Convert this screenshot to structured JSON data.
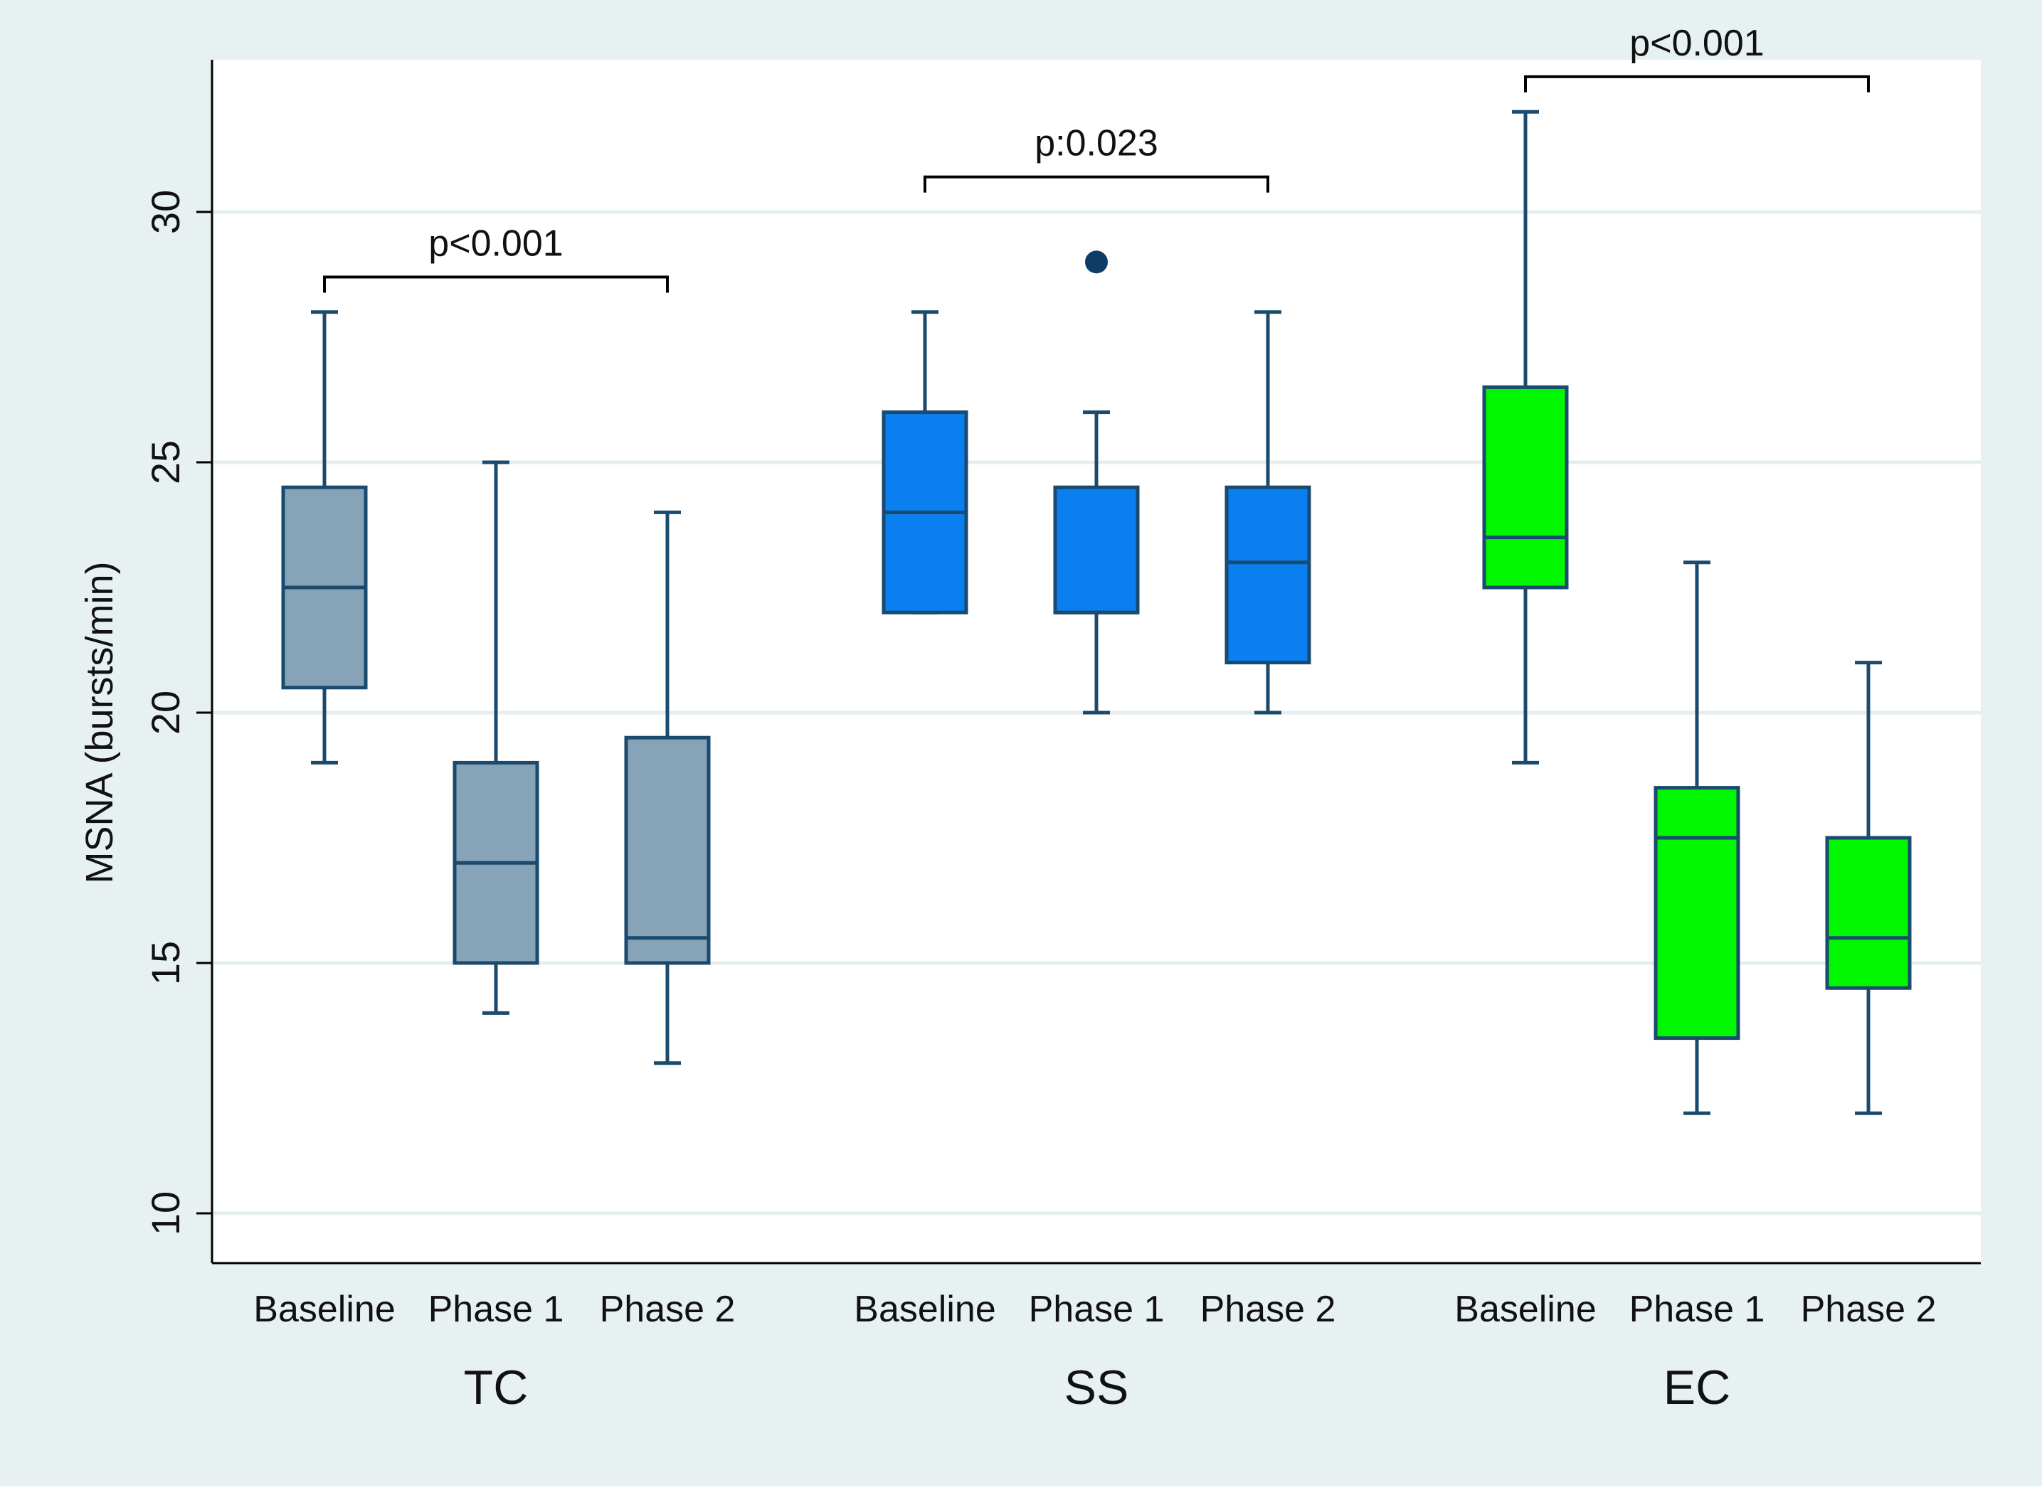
{
  "chart_data": {
    "type": "boxplot",
    "ylabel": "MSNA (bursts/min)",
    "xlabel": "",
    "ylim": [
      9,
      33
    ],
    "yticks": [
      10,
      15,
      20,
      25,
      30
    ],
    "grid": true,
    "groups": [
      {
        "name": "TC",
        "color": "#87a3b8",
        "boxes": [
          {
            "label": "Baseline",
            "min": 19,
            "q1": 20.5,
            "median": 22.5,
            "q3": 24.5,
            "max": 28,
            "outliers": []
          },
          {
            "label": "Phase 1",
            "min": 14,
            "q1": 15,
            "median": 17,
            "q3": 19,
            "max": 25,
            "outliers": []
          },
          {
            "label": "Phase 2",
            "min": 13,
            "q1": 15,
            "median": 15.5,
            "q3": 19.5,
            "max": 24,
            "outliers": []
          }
        ],
        "comparison": {
          "text": "p<0.001",
          "from": 0,
          "to": 2,
          "y": 28.7
        }
      },
      {
        "name": "SS",
        "color": "#0a7ff0",
        "boxes": [
          {
            "label": "Baseline",
            "min": 22,
            "q1": 22,
            "median": 24,
            "q3": 26,
            "max": 28,
            "outliers": []
          },
          {
            "label": "Phase 1",
            "min": 20,
            "q1": 22,
            "median": 22,
            "q3": 24.5,
            "max": 26,
            "outliers": [
              29
            ]
          },
          {
            "label": "Phase 2",
            "min": 20,
            "q1": 21,
            "median": 23,
            "q3": 24.5,
            "max": 28,
            "outliers": []
          }
        ],
        "comparison": {
          "text": "p:0.023",
          "from": 0,
          "to": 2,
          "y": 30.7
        }
      },
      {
        "name": "EC",
        "color": "#00f700",
        "boxes": [
          {
            "label": "Baseline",
            "min": 19,
            "q1": 22.5,
            "median": 23.5,
            "q3": 26.5,
            "max": 32,
            "outliers": []
          },
          {
            "label": "Phase 1",
            "min": 12,
            "q1": 13.5,
            "median": 17.5,
            "q3": 18.5,
            "max": 23,
            "outliers": []
          },
          {
            "label": "Phase 2",
            "min": 12,
            "q1": 14.5,
            "median": 15.5,
            "q3": 17.5,
            "max": 21,
            "outliers": []
          }
        ],
        "comparison": {
          "text": "p<0.001",
          "from": 0,
          "to": 2,
          "y": 32.7
        }
      }
    ]
  },
  "colors": {
    "outer_background": "#e8f1f2",
    "plot_background": "#ffffff",
    "gridline": "#e4eef0",
    "box_stroke": "#1a4a6e",
    "outlier": "#0d3d66"
  }
}
